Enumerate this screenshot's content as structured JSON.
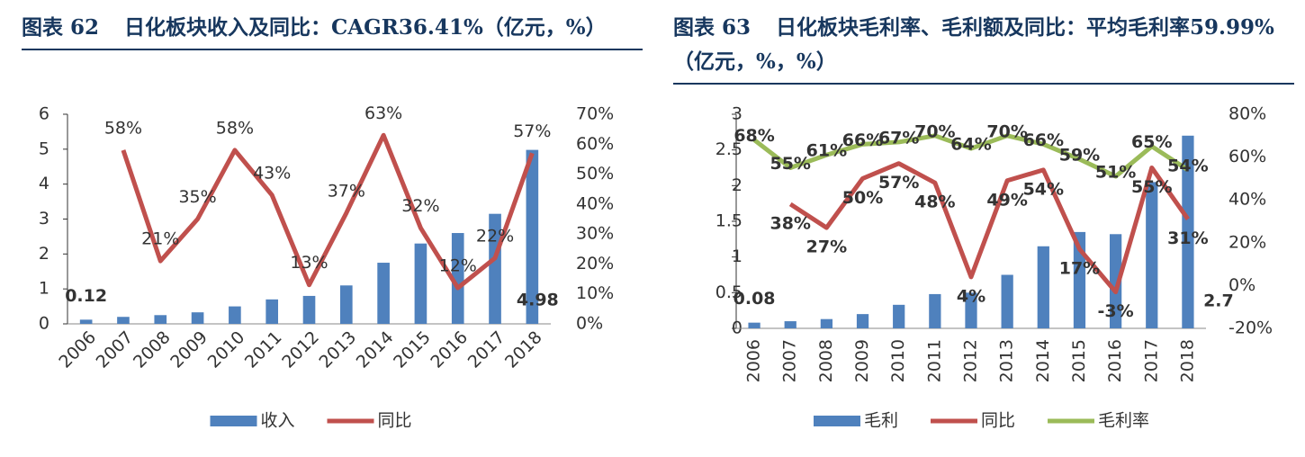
{
  "chart_data": [
    {
      "type": "bar_line",
      "label": "图表 62",
      "title": "日化板块收入及同比：CAGR36.41%（亿元，%）",
      "categories": [
        "2006",
        "2007",
        "2008",
        "2009",
        "2010",
        "2011",
        "2012",
        "2013",
        "2014",
        "2015",
        "2016",
        "2017",
        "2018"
      ],
      "series": [
        {
          "name": "收入",
          "type": "bar",
          "color": "#4f81bd",
          "values": [
            0.12,
            0.2,
            0.25,
            0.33,
            0.5,
            0.7,
            0.8,
            1.1,
            1.75,
            2.3,
            2.6,
            3.15,
            4.98
          ],
          "value_labels": [
            "0.12",
            null,
            null,
            null,
            null,
            null,
            null,
            null,
            null,
            null,
            null,
            null,
            "4.98"
          ]
        },
        {
          "name": "同比",
          "type": "line",
          "axis": "y2",
          "color": "#c0504d",
          "values": [
            null,
            58,
            21,
            35,
            58,
            43,
            13,
            37,
            63,
            32,
            12,
            22,
            57
          ],
          "value_labels": [
            null,
            "58%",
            "21%",
            "35%",
            "58%",
            "43%",
            "13%",
            "37%",
            "63%",
            "32%",
            "12%",
            "22%",
            "57%"
          ]
        }
      ],
      "ylim": [
        0,
        6
      ],
      "yticks": [
        0,
        1,
        2,
        3,
        4,
        5,
        6
      ],
      "y2lim": [
        0,
        70
      ],
      "y2ticks": [
        {
          "value": 0,
          "label": "0%"
        },
        {
          "value": 10,
          "label": "10%"
        },
        {
          "value": 20,
          "label": "20%"
        },
        {
          "value": 30,
          "label": "30%"
        },
        {
          "value": 40,
          "label": "40%"
        },
        {
          "value": 50,
          "label": "50%"
        },
        {
          "value": 60,
          "label": "60%"
        },
        {
          "value": 70,
          "label": "70%"
        }
      ]
    },
    {
      "type": "bar_line",
      "label": "图表 63",
      "title": "日化板块毛利率、毛利额及同比：平均毛利率59.99%（亿元，%，%）",
      "categories": [
        "2006",
        "2007",
        "2008",
        "2009",
        "2010",
        "2011",
        "2012",
        "2013",
        "2014",
        "2015",
        "2016",
        "2017",
        "2018"
      ],
      "series": [
        {
          "name": "毛利",
          "type": "bar",
          "color": "#4f81bd",
          "values": [
            0.08,
            0.1,
            0.13,
            0.2,
            0.33,
            0.48,
            0.5,
            0.75,
            1.15,
            1.35,
            1.32,
            2.05,
            2.7
          ],
          "value_labels": [
            "0.08",
            null,
            null,
            null,
            null,
            null,
            null,
            null,
            null,
            null,
            null,
            null,
            "2.7"
          ]
        },
        {
          "name": "同比",
          "type": "line",
          "axis": "y2",
          "color": "#c0504d",
          "values": [
            null,
            38,
            27,
            50,
            57,
            48,
            4,
            49,
            54,
            17,
            -3,
            55,
            31
          ],
          "value_labels": [
            null,
            "38%",
            "27%",
            "50%",
            "57%",
            "48%",
            "4%",
            "49%",
            "54%",
            "17%",
            "-3%",
            "55%",
            "31%"
          ]
        },
        {
          "name": "毛利率",
          "type": "line",
          "axis": "y2",
          "color": "#9bbb59",
          "values": [
            68,
            55,
            61,
            66,
            67,
            70,
            64,
            70,
            66,
            59,
            51,
            65,
            54
          ],
          "value_labels": [
            "68%",
            "55%",
            "61%",
            "66%",
            "67%",
            "70%",
            "64%",
            "70%",
            "66%",
            "59%",
            "51%",
            "65%",
            "54%"
          ]
        }
      ],
      "ylim": [
        0,
        3
      ],
      "yticks": [
        0,
        0.5,
        1,
        1.5,
        2,
        2.5,
        3
      ],
      "y2lim": [
        -20,
        80
      ],
      "y2ticks": [
        {
          "value": -20,
          "label": "-20%"
        },
        {
          "value": 0,
          "label": "0%"
        },
        {
          "value": 20,
          "label": "20%"
        },
        {
          "value": 40,
          "label": "40%"
        },
        {
          "value": 60,
          "label": "60%"
        },
        {
          "value": 80,
          "label": "80%"
        }
      ]
    }
  ]
}
